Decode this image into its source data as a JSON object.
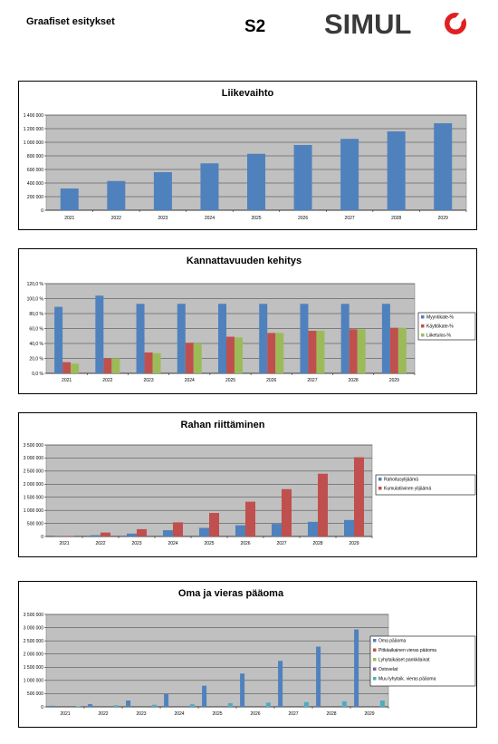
{
  "header": {
    "left_title": "Graafiset esitykset",
    "code": "S2",
    "logo_text": "SIMUL"
  },
  "colors": {
    "plot_bg": "#c0c0c0",
    "blue": "#4f81bd",
    "red": "#c0504d",
    "green": "#9bbb59",
    "cyan": "#4bacc6"
  },
  "chart_data": [
    {
      "type": "bar",
      "title": "Liikevaihto",
      "categories": [
        "2021",
        "2022",
        "2023",
        "2024",
        "2025",
        "2026",
        "2027",
        "2028",
        "2029"
      ],
      "ylim": [
        0,
        1400000
      ],
      "yticks": [
        0,
        200000,
        400000,
        600000,
        800000,
        1000000,
        1200000,
        1400000
      ],
      "ytick_labels": [
        "0",
        "200 000",
        "400 000",
        "600 000",
        "800 000",
        "1 000 000",
        "1 200 000",
        "1 400 000"
      ],
      "series": [
        {
          "values": [
            320000,
            430000,
            560000,
            690000,
            830000,
            960000,
            1050000,
            1160000,
            1280000
          ],
          "color": "#4f81bd"
        }
      ],
      "legend": "none",
      "grid": true
    },
    {
      "type": "bar",
      "title": "Kannattavuuden kehitys",
      "categories": [
        "2021",
        "2022",
        "2023",
        "2024",
        "2025",
        "2026",
        "2027",
        "2028",
        "2029"
      ],
      "ylim": [
        0,
        120
      ],
      "yticks": [
        0,
        20,
        40,
        60,
        80,
        100,
        120
      ],
      "ytick_labels": [
        "0,0 %",
        "20,0 %",
        "40,0 %",
        "60,0 %",
        "80,0 %",
        "100,0 %",
        "120,0 %"
      ],
      "series": [
        {
          "name": "Myyntikate-%",
          "values": [
            89,
            104,
            93,
            93,
            93,
            93,
            93,
            93,
            93
          ],
          "color": "#4f81bd"
        },
        {
          "name": "Käyttökate-%",
          "values": [
            15,
            20,
            28,
            41,
            49,
            54,
            57,
            59,
            61
          ],
          "color": "#c0504d"
        },
        {
          "name": "Liiketulos-%",
          "values": [
            13,
            20,
            27,
            40,
            48,
            54,
            57,
            59,
            61
          ],
          "color": "#9bbb59"
        }
      ],
      "legend": "right",
      "grid": true
    },
    {
      "type": "bar",
      "title": "Rahan riittäminen",
      "categories": [
        "2021",
        "2022",
        "2023",
        "2024",
        "2025",
        "2026",
        "2027",
        "2028",
        "2029"
      ],
      "ylim": [
        0,
        3500000
      ],
      "yticks": [
        0,
        500000,
        1000000,
        1500000,
        2000000,
        2500000,
        3000000,
        3500000
      ],
      "ytick_labels": [
        "0",
        "500 000",
        "1 000 000",
        "1 500 000",
        "2 000 000",
        "2 500 000",
        "3 000 000",
        "3 500 000"
      ],
      "series": [
        {
          "name": "Rahoitusylijäämä",
          "values": [
            10000,
            50000,
            110000,
            240000,
            330000,
            430000,
            480000,
            560000,
            630000
          ],
          "color": "#4f81bd"
        },
        {
          "name": "Kumulatiivinen ylijäämä",
          "values": [
            20000,
            150000,
            280000,
            540000,
            900000,
            1330000,
            1810000,
            2400000,
            3030000
          ],
          "color": "#c0504d"
        }
      ],
      "legend": "right",
      "grid": true
    },
    {
      "type": "bar",
      "title": "Oma ja vieras pääoma",
      "categories": [
        "2021",
        "2022",
        "2023",
        "2024",
        "2025",
        "2026",
        "2027",
        "2028",
        "2029"
      ],
      "ylim": [
        0,
        3500000
      ],
      "yticks": [
        0,
        500000,
        1000000,
        1500000,
        2000000,
        2500000,
        3000000,
        3500000
      ],
      "ytick_labels": [
        "0",
        "500 000",
        "1 000 000",
        "1 500 000",
        "2 000 000",
        "2 500 000",
        "3 000 000",
        "3 500 000"
      ],
      "series": [
        {
          "name": "Oma pääoma",
          "values": [
            40000,
            100000,
            240000,
            480000,
            800000,
            1260000,
            1740000,
            2280000,
            2930000
          ],
          "color": "#4f81bd"
        },
        {
          "name": "Pitkäaikainen vieras pääoma",
          "values": [
            0,
            0,
            0,
            0,
            0,
            0,
            0,
            0,
            0
          ],
          "color": "#c0504d"
        },
        {
          "name": "Lyhytaikaiset pankkilainat",
          "values": [
            0,
            0,
            0,
            0,
            0,
            0,
            0,
            0,
            0
          ],
          "color": "#9bbb59"
        },
        {
          "name": "Ostovelat",
          "values": [
            0,
            0,
            0,
            0,
            0,
            0,
            0,
            0,
            0
          ],
          "color": "#8064a2"
        },
        {
          "name": "Muu lyhytaik. vieras pääoma",
          "values": [
            20000,
            60000,
            80000,
            100000,
            140000,
            160000,
            180000,
            210000,
            240000
          ],
          "color": "#4bacc6"
        }
      ],
      "legend": "right",
      "grid": true
    }
  ]
}
